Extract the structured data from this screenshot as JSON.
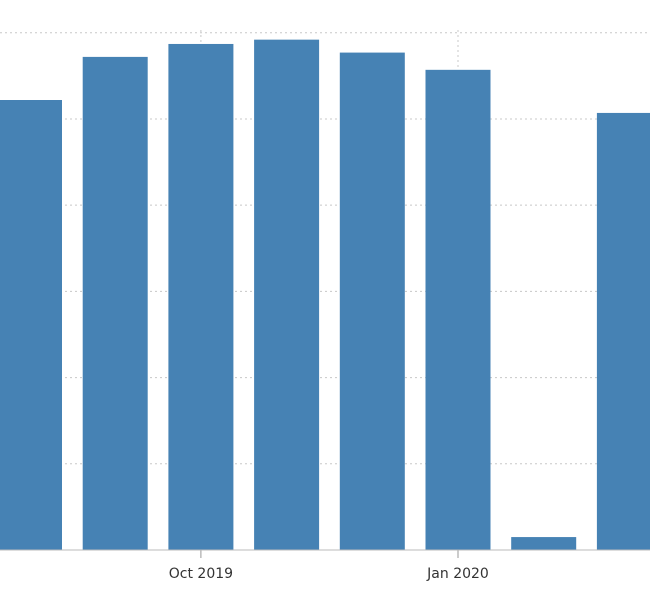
{
  "chart_data": {
    "type": "bar",
    "categories": [
      null,
      null,
      "Oct 2019",
      null,
      null,
      "Jan 2020",
      null,
      null
    ],
    "values": [
      5.22,
      5.72,
      5.87,
      5.92,
      5.77,
      5.57,
      0.15,
      5.07
    ],
    "color": "#4682b4",
    "ylim": [
      0,
      6.38
    ],
    "yticks": [
      1,
      2,
      3,
      4,
      5,
      6
    ],
    "grid": true
  }
}
